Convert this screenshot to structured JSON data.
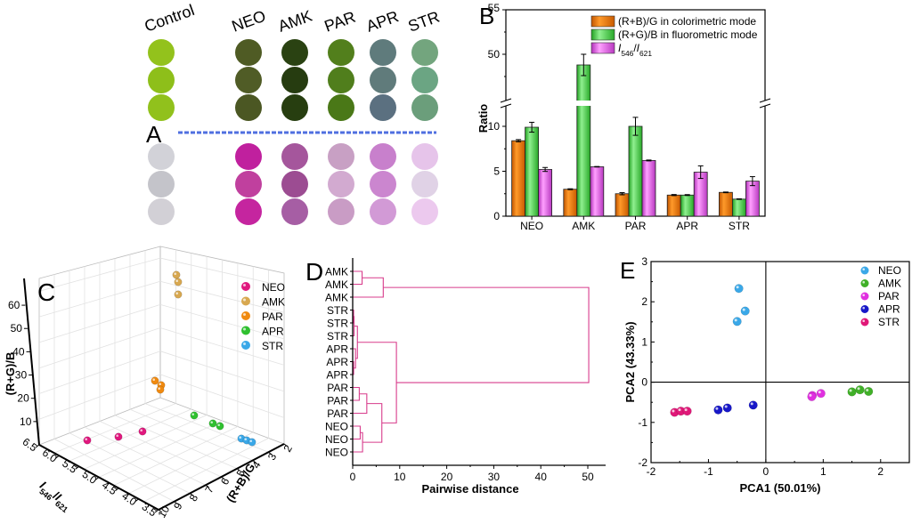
{
  "figure": {
    "panel_labels": {
      "A": "A",
      "B": "B",
      "C": "C",
      "D": "D",
      "E": "E"
    }
  },
  "chart_data": [
    {
      "panel": "A",
      "type": "image-array",
      "title": "",
      "column_labels": [
        "Control",
        "NEO",
        "AMK",
        "PAR",
        "APR",
        "STR"
      ],
      "rows_per_mode": 3,
      "colorimetric_colors": [
        "#93c21c",
        "#4e5a25",
        "#283d10",
        "#4f7d19",
        "#5f7a7a",
        "#6aa07c"
      ],
      "colorimetric_replicates": [
        [
          "#93c21c",
          "#8ebf1a",
          "#91c11c"
        ],
        [
          "#4f5b24",
          "#505c26",
          "#4b5723"
        ],
        [
          "#2a4212",
          "#263c10",
          "#273e10"
        ],
        [
          "#527f1c",
          "#507e1c",
          "#4a7817"
        ],
        [
          "#5f7b7c",
          "#607b7b",
          "#5b7080"
        ],
        [
          "#73a57e",
          "#6ba583",
          "#6b9e7b"
        ]
      ],
      "fluorometric_replicates": [
        [
          "#d2d2d8",
          "#c4c4ca",
          "#d2d0d6"
        ],
        [
          "#c0209e",
          "#c0409e",
          "#c5259f"
        ],
        [
          "#a5569c",
          "#9c4c92",
          "#a65ea4"
        ],
        [
          "#c8a0c4",
          "#d2aad0",
          "#c99cc5"
        ],
        [
          "#c880cc",
          "#cb86cf",
          "#d29ad6"
        ],
        [
          "#e6c4ea",
          "#e0d2e6",
          "#ecc9ee"
        ]
      ],
      "divider_color": "#4f6fe0"
    },
    {
      "panel": "B",
      "type": "bar",
      "title": "",
      "xlabel": "",
      "ylabel": "Ratio",
      "categories": [
        "NEO",
        "AMK",
        "PAR",
        "APR",
        "STR"
      ],
      "ylim_lower": [
        0,
        12
      ],
      "ylim_upper": [
        45,
        55
      ],
      "yticks_lower": [
        0,
        5,
        10
      ],
      "yticks_upper": [
        50,
        55
      ],
      "axis_break": true,
      "legend_position": "top-right",
      "series": [
        {
          "name": "(R+B)/G in colorimetric mode",
          "color": "#f07800",
          "values": [
            8.4,
            3.0,
            2.5,
            2.35,
            2.65
          ],
          "errors": [
            0.12,
            0.05,
            0.12,
            0.06,
            0.04
          ]
        },
        {
          "name": "(R+G)/B in fluorometric mode",
          "color": "#48d048",
          "values": [
            9.9,
            48.8,
            10.0,
            2.35,
            1.9
          ],
          "errors": [
            0.55,
            1.2,
            1.0,
            0.05,
            0.03
          ]
        },
        {
          "name": "I546/I621",
          "name_parts": [
            "I",
            "546",
            "/",
            "I",
            "621"
          ],
          "color": "#e060e0",
          "values": [
            5.2,
            5.5,
            6.2,
            4.9,
            3.9
          ],
          "errors": [
            0.22,
            0.03,
            0.05,
            0.7,
            0.5
          ]
        }
      ]
    },
    {
      "panel": "C",
      "type": "scatter3d",
      "title": "",
      "xlabel": "(R+B)/G",
      "ylabel": "I546/I621",
      "ylabel_parts": [
        "I",
        "546",
        "/",
        "I",
        "621"
      ],
      "zlabel": "(R+G)/B",
      "xlim": [
        2,
        10
      ],
      "ylim": [
        3.5,
        6.5
      ],
      "zlim": [
        0,
        65
      ],
      "xticks": [
        2,
        3,
        4,
        5,
        6,
        7,
        8,
        9,
        10
      ],
      "yticks": [
        3.5,
        4.0,
        4.5,
        5.0,
        5.5,
        6.0,
        6.5
      ],
      "zticks": [
        10,
        20,
        30,
        40,
        50,
        60
      ],
      "legend_position": "top-right",
      "series": [
        {
          "name": "NEO",
          "color": "#e0187e",
          "points": [
            [
              8.5,
              5.5,
              10
            ],
            [
              8.3,
              5.0,
              9.5
            ],
            [
              8.4,
              5.2,
              10.5
            ]
          ]
        },
        {
          "name": "AMK",
          "color": "#d8a850",
          "points": [
            [
              3.0,
              5.5,
              58
            ],
            [
              3.0,
              5.5,
              61
            ],
            [
              3.0,
              5.5,
              62
            ]
          ]
        },
        {
          "name": "PAR",
          "color": "#f08a10",
          "points": [
            [
              2.5,
              6.2,
              10.0
            ],
            [
              2.4,
              6.2,
              9.0
            ],
            [
              2.5,
              6.3,
              11.0
            ]
          ]
        },
        {
          "name": "APR",
          "color": "#30c030",
          "points": [
            [
              2.4,
              4.5,
              2.4
            ],
            [
              2.3,
              5.2,
              2.3
            ],
            [
              2.35,
              4.9,
              2.3
            ]
          ]
        },
        {
          "name": "STR",
          "color": "#3aa8e8",
          "points": [
            [
              2.7,
              3.9,
              1.9
            ],
            [
              2.65,
              3.8,
              1.9
            ],
            [
              2.6,
              3.7,
              1.9
            ]
          ]
        }
      ]
    },
    {
      "panel": "D",
      "type": "dendrogram",
      "title": "",
      "xlabel": "Pairwise distance",
      "xlim": [
        0,
        53
      ],
      "xticks": [
        0,
        10,
        20,
        30,
        40,
        50
      ],
      "leaf_labels": [
        "AMK",
        "AMK",
        "AMK",
        "STR",
        "STR",
        "STR",
        "APR",
        "APR",
        "APR",
        "PAR",
        "PAR",
        "PAR",
        "NEO",
        "NEO",
        "NEO"
      ],
      "merges": [
        {
          "a": "L0",
          "b": "L1",
          "height": 2.0,
          "id": "M1"
        },
        {
          "a": "M1",
          "b": "L2",
          "height": 6.5,
          "id": "M2"
        },
        {
          "a": "L3",
          "b": "L4",
          "height": 0.2,
          "id": "M3"
        },
        {
          "a": "L7",
          "b": "L8",
          "height": 0.2,
          "id": "M4"
        },
        {
          "a": "L6",
          "b": "M4",
          "height": 0.6,
          "id": "M5"
        },
        {
          "a": "M3",
          "b": "L5",
          "height": 0.3,
          "id": "M3b"
        },
        {
          "a": "M3b",
          "b": "M5",
          "height": 1.0,
          "id": "M6"
        },
        {
          "a": "L9",
          "b": "L10",
          "height": 1.4,
          "id": "M7"
        },
        {
          "a": "M7",
          "b": "L11",
          "height": 3.0,
          "id": "M8"
        },
        {
          "a": "L12",
          "b": "L13",
          "height": 1.6,
          "id": "M9"
        },
        {
          "a": "M9",
          "b": "L14",
          "height": 2.1,
          "id": "M10"
        },
        {
          "a": "M8",
          "b": "M10",
          "height": 6.2,
          "id": "M11"
        },
        {
          "a": "M6",
          "b": "M11",
          "height": 9.3,
          "id": "M12"
        },
        {
          "a": "M2",
          "b": "M12",
          "height": 50.2,
          "id": "M13"
        }
      ],
      "line_color": "#d83c8c"
    },
    {
      "panel": "E",
      "type": "scatter",
      "title": "",
      "xlabel": "PCA1 (50.01%)",
      "ylabel": "PCA2 (43.33%)",
      "xlim": [
        -2,
        2.5
      ],
      "ylim": [
        -2,
        3
      ],
      "xticks": [
        -2,
        -1,
        0,
        1,
        2
      ],
      "yticks": [
        -2,
        -1,
        0,
        1,
        2,
        3
      ],
      "legend_position": "top-right",
      "series": [
        {
          "name": "NEO",
          "color": "#3aa8e8",
          "points": [
            [
              -0.47,
              2.33
            ],
            [
              -0.36,
              1.77
            ],
            [
              -0.5,
              1.51
            ]
          ]
        },
        {
          "name": "AMK",
          "color": "#40b028",
          "points": [
            [
              1.5,
              -0.24
            ],
            [
              1.64,
              -0.19
            ],
            [
              1.79,
              -0.23
            ]
          ]
        },
        {
          "name": "PAR",
          "color": "#e030e0",
          "points": [
            [
              0.81,
              -0.33
            ],
            [
              0.96,
              -0.28
            ],
            [
              0.8,
              -0.36
            ]
          ]
        },
        {
          "name": "APR",
          "color": "#1818c8",
          "points": [
            [
              -0.83,
              -0.69
            ],
            [
              -0.67,
              -0.64
            ],
            [
              -0.22,
              -0.57
            ]
          ]
        },
        {
          "name": "STR",
          "color": "#e01878",
          "points": [
            [
              -1.59,
              -0.75
            ],
            [
              -1.48,
              -0.72
            ],
            [
              -1.37,
              -0.72
            ]
          ]
        }
      ]
    }
  ]
}
